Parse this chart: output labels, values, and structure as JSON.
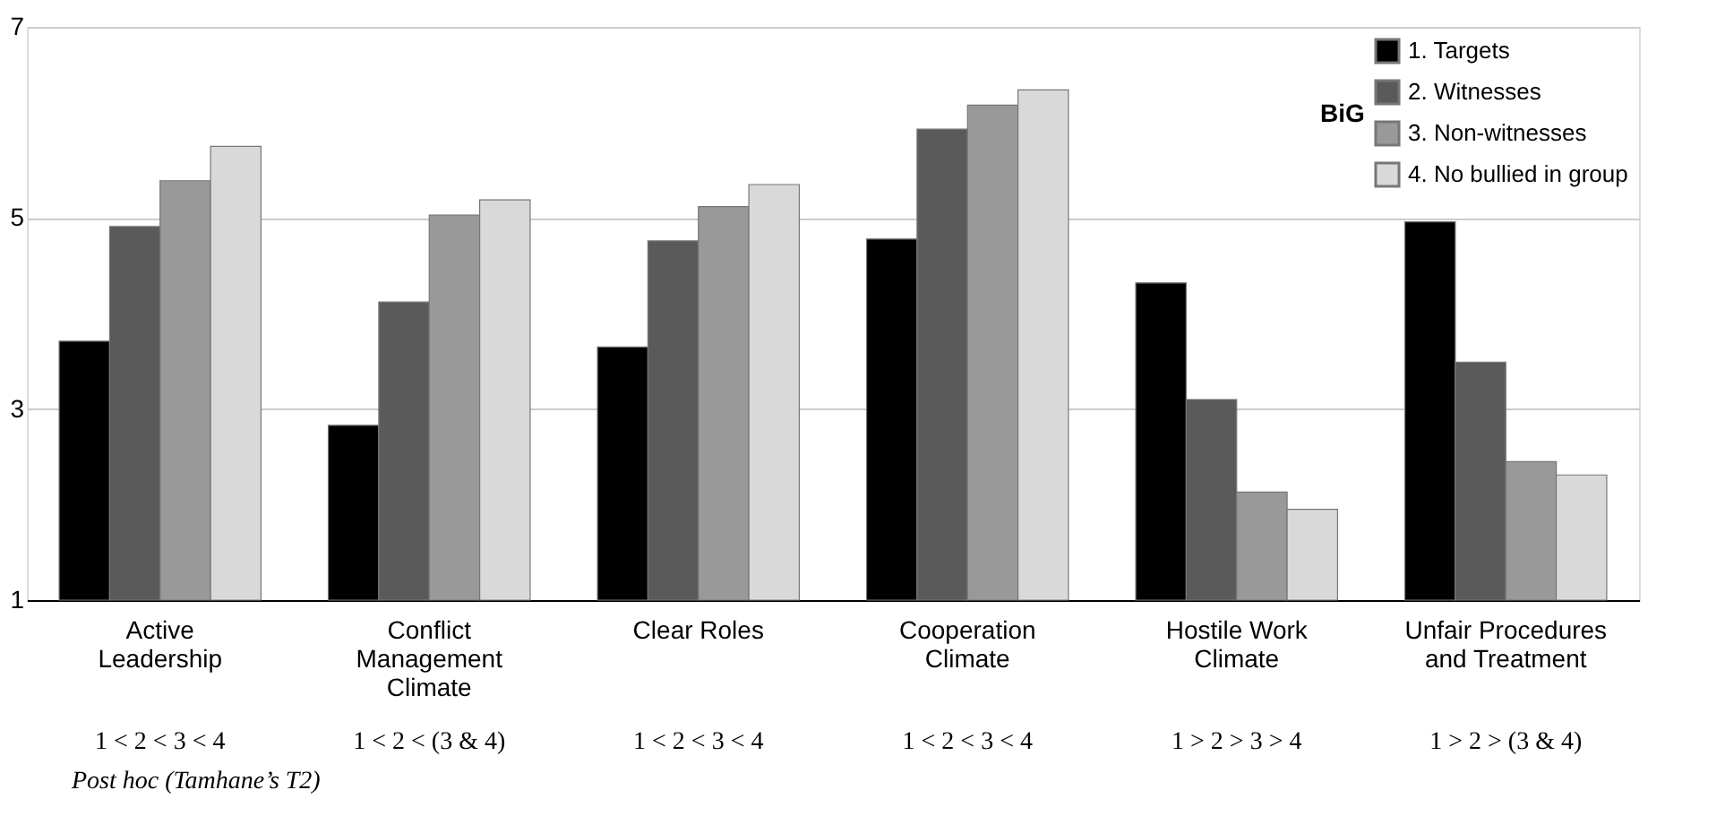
{
  "chart_data": {
    "type": "bar",
    "categories": [
      "Active\nLeadership",
      "Conflict\nManagement\nClimate",
      "Clear Roles",
      "Cooperation\nClimate",
      "Hostile Work\nClimate",
      "Unfair Procedures\nand Treatment"
    ],
    "series": [
      {
        "name": "1. Targets",
        "color": "#000000",
        "values": [
          3.71,
          2.83,
          3.65,
          4.78,
          4.32,
          4.96
        ]
      },
      {
        "name": "2. Witnesses",
        "color": "#5a5a5a",
        "values": [
          4.91,
          4.12,
          4.76,
          5.93,
          3.1,
          3.49
        ]
      },
      {
        "name": "3. Non-witnesses",
        "color": "#999999",
        "values": [
          5.39,
          5.03,
          5.12,
          6.18,
          2.13,
          2.45
        ]
      },
      {
        "name": "4. No bullied in group",
        "color": "#d9d9d9",
        "values": [
          5.75,
          5.19,
          5.35,
          6.34,
          1.95,
          2.31
        ]
      }
    ],
    "legend_title": "BiG",
    "legend": "top right",
    "ylim": [
      1,
      7
    ],
    "yticks": [
      1,
      3,
      5,
      7
    ],
    "grid": "y",
    "annotations": [
      "1 < 2 < 3 < 4",
      "1 < 2 < (3 & 4)",
      "1 < 2 < 3 < 4",
      "1 < 2 < 3 < 4",
      "1 > 2 > 3 > 4",
      "1 > 2 > (3 & 4)",
      "Post hoc (Tamhane’s T2)"
    ]
  }
}
